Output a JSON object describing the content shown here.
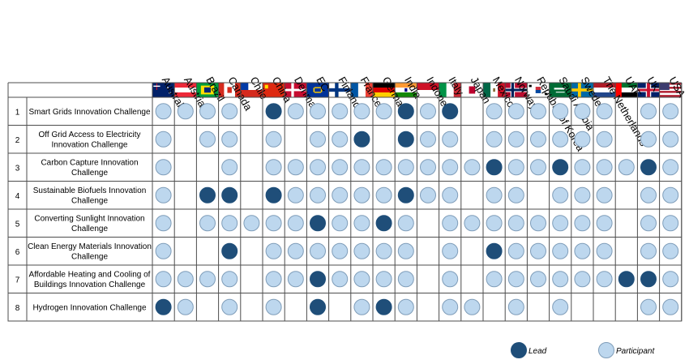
{
  "chart_data": {
    "type": "table",
    "title": "",
    "countries": [
      "Australia",
      "Austria",
      "Brazil",
      "Canada",
      "Chile",
      "China",
      "Denmark",
      "EC",
      "Finland",
      "France",
      "Germany",
      "India",
      "Indonesia",
      "Italy",
      "Japan",
      "Mexico",
      "Norway",
      "Republic of Korea",
      "Saudi Arabia",
      "Sweden",
      "The Netherlands",
      "UAE",
      "UK",
      "USA"
    ],
    "challenges": [
      {
        "number": "1",
        "name": "Smart Grids Innovation Challenge",
        "status": [
          "P",
          "P",
          "P",
          "P",
          "",
          "L",
          "P",
          "P",
          "P",
          "P",
          "P",
          "L",
          "P",
          "L",
          "",
          "P",
          "P",
          "P",
          "P",
          "P",
          "P",
          "",
          "P",
          "P"
        ]
      },
      {
        "number": "2",
        "name": "Off Grid Access to Electricity\nInnovation Challenge",
        "status": [
          "P",
          "",
          "P",
          "P",
          "",
          "P",
          "",
          "P",
          "P",
          "L",
          "",
          "L",
          "P",
          "P",
          "",
          "P",
          "P",
          "P",
          "P",
          "P",
          "P",
          "",
          "P",
          "P"
        ]
      },
      {
        "number": "3",
        "name": "Carbon Capture Innovation\nChallenge",
        "status": [
          "P",
          "",
          "",
          "P",
          "",
          "P",
          "P",
          "P",
          "P",
          "P",
          "P",
          "P",
          "P",
          "P",
          "P",
          "L",
          "P",
          "P",
          "L",
          "P",
          "P",
          "P",
          "L",
          "P"
        ]
      },
      {
        "number": "4",
        "name": "Sustainable Biofuels Innovation\nChallenge",
        "status": [
          "P",
          "",
          "L",
          "L",
          "",
          "L",
          "P",
          "P",
          "P",
          "P",
          "P",
          "L",
          "P",
          "P",
          "",
          "P",
          "P",
          "",
          "P",
          "P",
          "P",
          "",
          "P",
          "P"
        ]
      },
      {
        "number": "5",
        "name": "Converting Sunlight Innovation\nChallenge",
        "status": [
          "P",
          "",
          "P",
          "P",
          "P",
          "P",
          "P",
          "L",
          "P",
          "P",
          "L",
          "P",
          "",
          "P",
          "P",
          "P",
          "P",
          "P",
          "P",
          "P",
          "P",
          "",
          "P",
          "P"
        ]
      },
      {
        "number": "6",
        "name": "Clean Energy Materials Innovation\nChallenge",
        "status": [
          "P",
          "",
          "",
          "L",
          "",
          "P",
          "P",
          "P",
          "P",
          "P",
          "P",
          "P",
          "",
          "P",
          "",
          "L",
          "P",
          "P",
          "P",
          "P",
          "P",
          "",
          "P",
          "P"
        ]
      },
      {
        "number": "7",
        "name": "Affordable Heating and Cooling of\nBuildings Innovation Challenge",
        "status": [
          "P",
          "P",
          "P",
          "P",
          "",
          "P",
          "P",
          "L",
          "P",
          "P",
          "P",
          "P",
          "",
          "P",
          "",
          "P",
          "P",
          "P",
          "P",
          "P",
          "P",
          "L",
          "L",
          "P"
        ]
      },
      {
        "number": "8",
        "name": "Hydrogen Innovation Challenge",
        "status": [
          "L",
          "P",
          "",
          "P",
          "",
          "P",
          "",
          "L",
          "",
          "P",
          "L",
          "P",
          "",
          "P",
          "P",
          "",
          "P",
          "",
          "P",
          "",
          "",
          "",
          "P",
          "P"
        ]
      }
    ],
    "legend": [
      {
        "key": "L",
        "label": "Lead",
        "color": "#1f4e79"
      },
      {
        "key": "P",
        "label": "Participant",
        "color": "#bdd7ee"
      }
    ],
    "colors": {
      "lead": "#1f4e79",
      "participant": "#bdd7ee",
      "participant_stroke": "#7f9db9",
      "grid": "#4d4d4d"
    }
  }
}
